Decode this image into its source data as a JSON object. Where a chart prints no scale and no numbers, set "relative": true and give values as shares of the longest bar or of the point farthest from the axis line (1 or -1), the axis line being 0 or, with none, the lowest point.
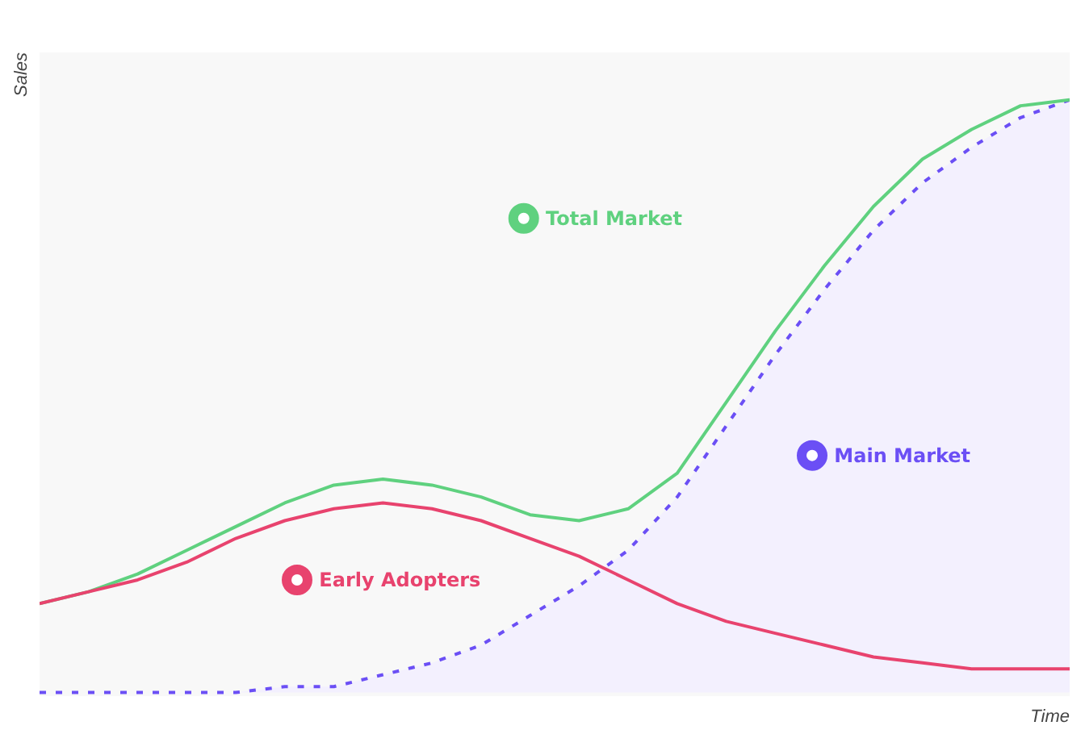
{
  "chart_data": {
    "type": "line",
    "relative": true,
    "xlabel": "Time",
    "ylabel": "Sales",
    "legend": "center",
    "grid": false,
    "categories": [
      null,
      null,
      null,
      null,
      null,
      null,
      null,
      null,
      null,
      null,
      null,
      null,
      null,
      null,
      null,
      null,
      null,
      null,
      null,
      null,
      null,
      null
    ],
    "series": [
      {
        "name": "Total Market",
        "color": "#5fd17f",
        "values": [
          0.15,
          0.17,
          0.2,
          0.24,
          0.28,
          0.32,
          0.35,
          0.36,
          0.35,
          0.33,
          0.3,
          0.29,
          0.31,
          0.37,
          0.49,
          0.61,
          0.72,
          0.82,
          0.9,
          0.95,
          0.99,
          1.0
        ]
      },
      {
        "name": "Early Adopters",
        "color": "#e8436e",
        "values": [
          0.15,
          0.17,
          0.19,
          0.22,
          0.26,
          0.29,
          0.31,
          0.32,
          0.31,
          0.29,
          0.26,
          0.23,
          0.19,
          0.15,
          0.12,
          0.1,
          0.08,
          0.06,
          0.05,
          0.04,
          0.04,
          0.04
        ]
      },
      {
        "name": "Main Market",
        "type": "area",
        "line_style": "dashed",
        "color": "#6b4ff5",
        "values": [
          0,
          0,
          0,
          0,
          0,
          0.01,
          0.01,
          0.03,
          0.05,
          0.08,
          0.13,
          0.18,
          0.24,
          0.33,
          0.45,
          0.57,
          0.68,
          0.78,
          0.86,
          0.92,
          0.97,
          1.0
        ]
      }
    ]
  }
}
